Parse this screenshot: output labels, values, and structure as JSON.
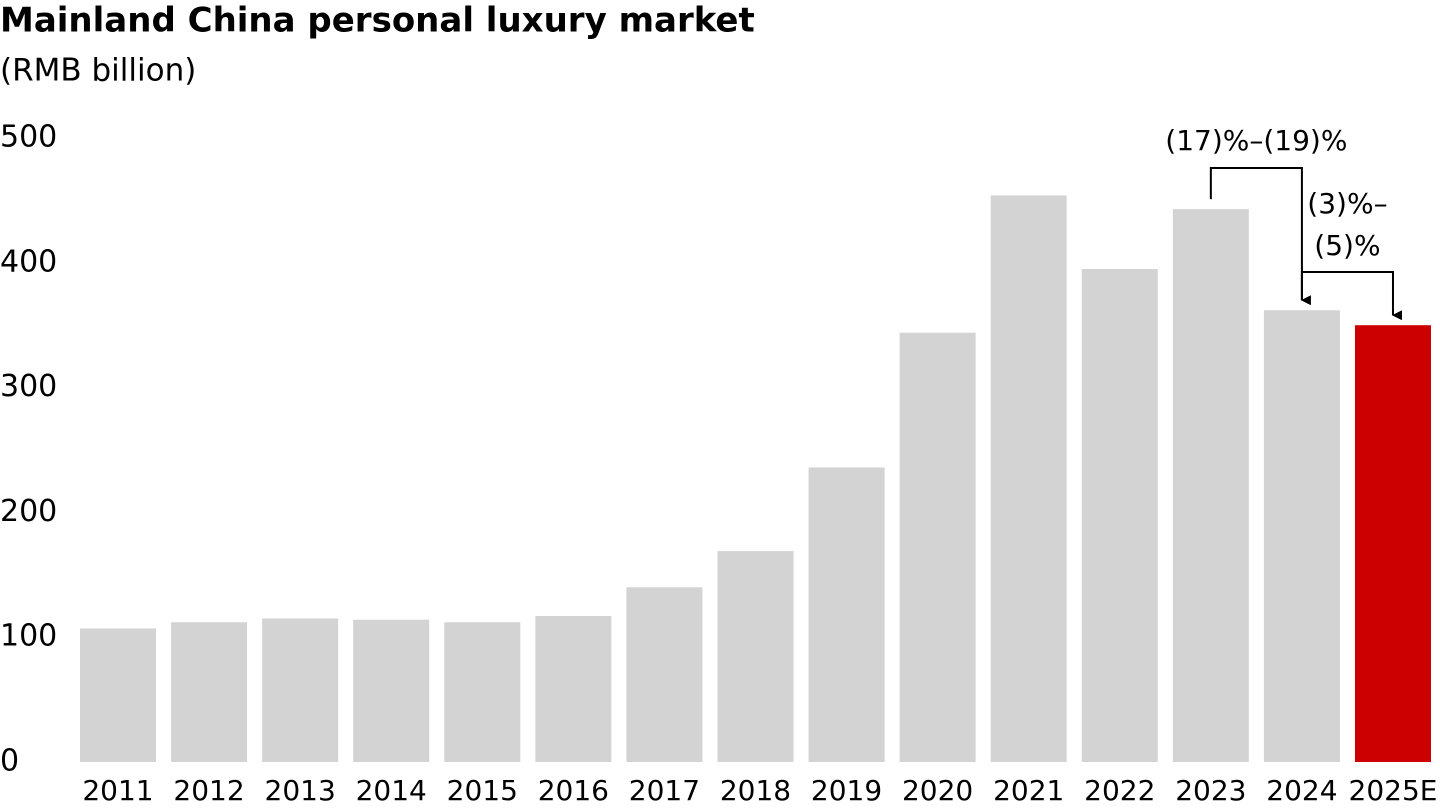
{
  "chart_data": {
    "type": "bar",
    "title": "Mainland China personal luxury market",
    "subtitle": "(RMB billion)",
    "categories": [
      "2011",
      "2012",
      "2013",
      "2014",
      "2015",
      "2016",
      "2017",
      "2018",
      "2019",
      "2020",
      "2021",
      "2022",
      "2023",
      "2024",
      "2025E"
    ],
    "values": [
      107,
      112,
      115,
      114,
      112,
      117,
      140,
      169,
      236,
      344,
      454,
      395,
      443,
      362,
      350
    ],
    "colors": [
      "#d3d3d3",
      "#d3d3d3",
      "#d3d3d3",
      "#d3d3d3",
      "#d3d3d3",
      "#d3d3d3",
      "#d3d3d3",
      "#d3d3d3",
      "#d3d3d3",
      "#d3d3d3",
      "#d3d3d3",
      "#d3d3d3",
      "#d3d3d3",
      "#d3d3d3",
      "#cc0000"
    ],
    "ylim": [
      0,
      500
    ],
    "yticks": [
      0,
      100,
      200,
      300,
      400,
      500
    ],
    "grid": false,
    "annotations": [
      [
        "(17)%–(19)%"
      ],
      [
        "(3)%–",
        "(5)%"
      ]
    ]
  }
}
